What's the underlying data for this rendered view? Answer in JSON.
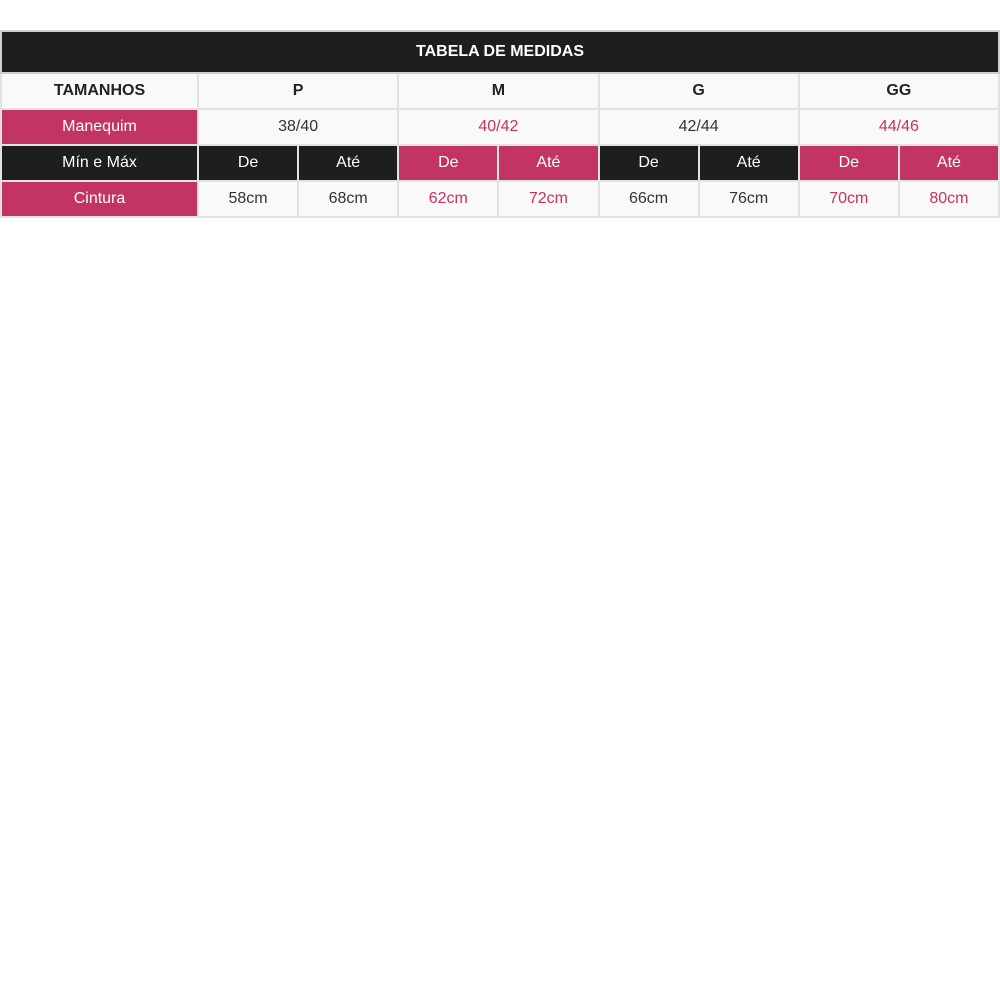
{
  "title": "TABELA DE MEDIDAS",
  "colors": {
    "dark": "#1e1e1e",
    "accent": "#c23461"
  },
  "header": {
    "label": "TAMANHOS",
    "sizes": [
      "P",
      "M",
      "G",
      "GG"
    ]
  },
  "manequim": {
    "label": "Manequim",
    "values": [
      "38/40",
      "40/42",
      "42/44",
      "44/46"
    ]
  },
  "minmax": {
    "label": "Mín e Máx",
    "cols": [
      "De",
      "Até",
      "De",
      "Até",
      "De",
      "Até",
      "De",
      "Até"
    ]
  },
  "cintura": {
    "label": "Cintura",
    "values": [
      "58cm",
      "68cm",
      "62cm",
      "72cm",
      "66cm",
      "76cm",
      "70cm",
      "80cm"
    ]
  }
}
